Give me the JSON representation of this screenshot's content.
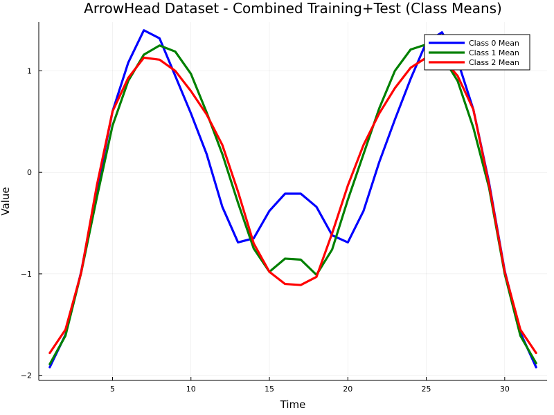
{
  "chart_data": {
    "type": "line",
    "title": "ArrowHead Dataset - Combined Training+Test (Class Means)",
    "xlabel": "Time",
    "ylabel": "Value",
    "xlim": [
      0.3,
      32.7
    ],
    "ylim": [
      -2.05,
      1.48
    ],
    "xticks": [
      5,
      10,
      15,
      20,
      25,
      30
    ],
    "yticks": [
      -2,
      -1,
      0,
      1
    ],
    "yticklabels": [
      "−2",
      "−1",
      "0",
      "1"
    ],
    "grid": true,
    "legend_position": "top-right",
    "x": [
      1,
      2,
      3,
      4,
      5,
      6,
      7,
      8,
      9,
      10,
      11,
      12,
      13,
      14,
      15,
      16,
      17,
      18,
      19,
      20,
      21,
      22,
      23,
      24,
      25,
      26,
      27,
      28,
      29,
      30,
      31,
      32
    ],
    "series": [
      {
        "name": "Class 0 Mean",
        "color": "#0000ff",
        "values": [
          -1.92,
          -1.6,
          -0.98,
          -0.18,
          0.6,
          1.08,
          1.4,
          1.32,
          0.95,
          0.58,
          0.18,
          -0.34,
          -0.69,
          -0.65,
          -0.38,
          -0.21,
          -0.21,
          -0.34,
          -0.62,
          -0.69,
          -0.38,
          0.1,
          0.52,
          0.92,
          1.28,
          1.38,
          1.1,
          0.62,
          -0.1,
          -0.97,
          -1.58,
          -1.92
        ]
      },
      {
        "name": "Class 1 Mean",
        "color": "#008000",
        "values": [
          -1.89,
          -1.61,
          -0.99,
          -0.25,
          0.46,
          0.9,
          1.16,
          1.25,
          1.19,
          0.97,
          0.59,
          0.18,
          -0.3,
          -0.75,
          -0.98,
          -0.85,
          -0.86,
          -1.01,
          -0.76,
          -0.27,
          0.18,
          0.63,
          1.0,
          1.21,
          1.26,
          1.15,
          0.9,
          0.44,
          -0.15,
          -1.0,
          -1.61,
          -1.88
        ]
      },
      {
        "name": "Class 2 Mean",
        "color": "#ff0000",
        "values": [
          -1.78,
          -1.55,
          -0.99,
          -0.13,
          0.6,
          0.93,
          1.13,
          1.11,
          1.0,
          0.8,
          0.57,
          0.27,
          -0.19,
          -0.7,
          -0.98,
          -1.1,
          -1.11,
          -1.03,
          -0.6,
          -0.13,
          0.27,
          0.58,
          0.83,
          1.03,
          1.13,
          1.13,
          0.95,
          0.62,
          -0.12,
          -0.98,
          -1.55,
          -1.78
        ]
      }
    ]
  }
}
